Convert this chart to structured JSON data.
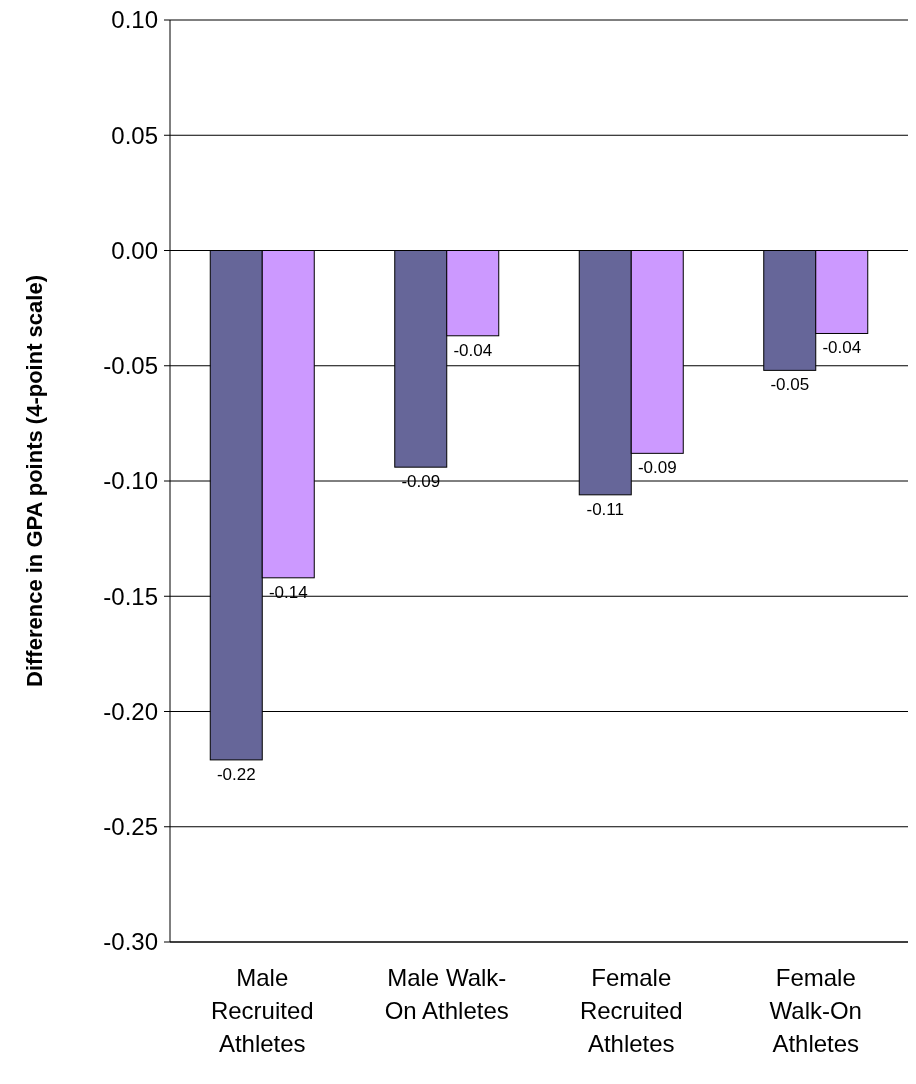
{
  "chart_data": {
    "type": "bar",
    "ylabel": "Difference in GPA points (4-point scale)",
    "categories": [
      "Male Recruited Athletes",
      "Male Walk-On Athletes",
      "Female Recruited Athletes",
      "Female Walk-On Athletes"
    ],
    "series": [
      {
        "color": "#666699",
        "values": [
          -0.221,
          -0.094,
          -0.106,
          -0.052
        ],
        "value_labels": [
          "-0.22",
          "-0.09",
          "-0.11",
          "-0.05"
        ]
      },
      {
        "color": "#cc99ff",
        "values": [
          -0.142,
          -0.037,
          -0.088,
          -0.036
        ],
        "value_labels": [
          "-0.14",
          "-0.04",
          "-0.09",
          "-0.04"
        ]
      }
    ],
    "ylim": [
      -0.3,
      0.1
    ],
    "yticks": [
      {
        "value": 0.1,
        "label": "0.10"
      },
      {
        "value": 0.05,
        "label": "0.05"
      },
      {
        "value": 0,
        "label": "0.00"
      },
      {
        "value": -0.05,
        "label": "-0.05"
      },
      {
        "value": -0.1,
        "label": "-0.10"
      },
      {
        "value": -0.15,
        "label": "-0.15"
      },
      {
        "value": -0.2,
        "label": "-0.20"
      },
      {
        "value": -0.25,
        "label": "-0.25"
      },
      {
        "value": -0.3,
        "label": "-0.30"
      }
    ],
    "grid": "y"
  }
}
